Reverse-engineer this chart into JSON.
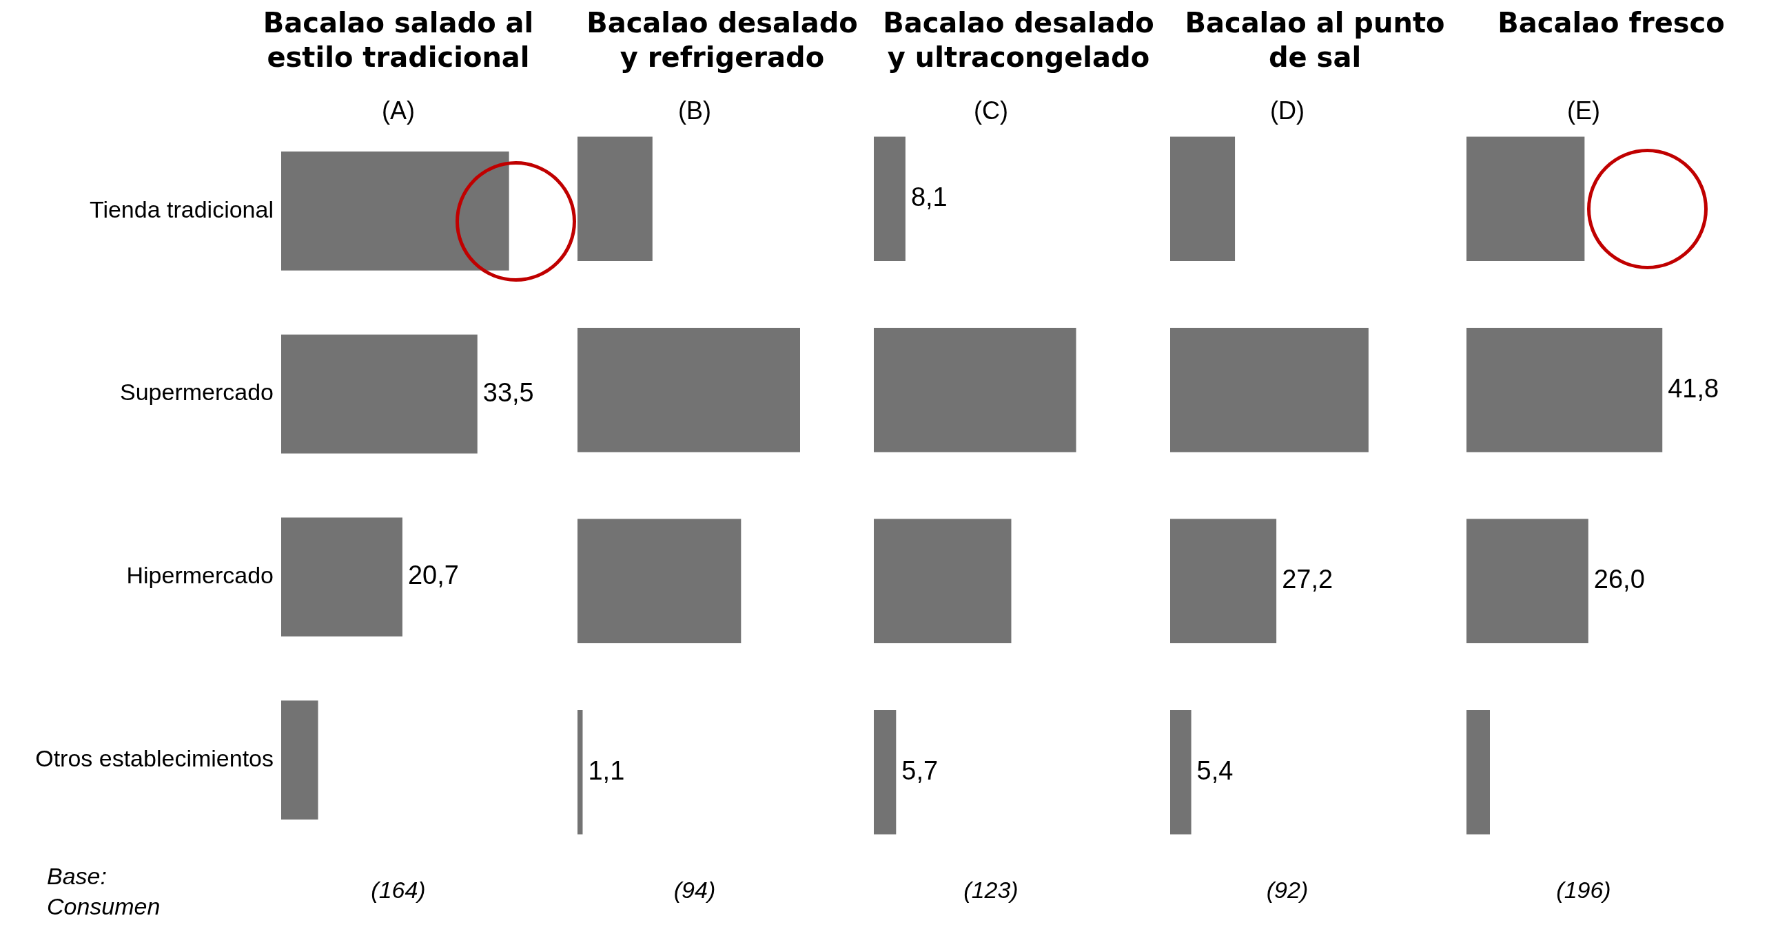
{
  "chart_data": [
    {
      "type": "bar",
      "orientation": "horizontal",
      "title": "Bacalao salado al estilo tradicional",
      "subtitle": "(A)",
      "categories": [
        "Tienda tradicional",
        "Supermercado",
        "Hipermercado",
        "Otros establecimientos"
      ],
      "values": [
        38.9,
        33.5,
        20.7,
        6.3
      ],
      "value_labels": [
        null,
        "33,5",
        "20,7",
        null
      ],
      "color": "#737373",
      "tick_labels": "y",
      "annotations": [
        "Base: Consumen",
        "(164)"
      ]
    },
    {
      "type": "bar",
      "orientation": "horizontal",
      "title": "Bacalao desalado y refrigerado",
      "subtitle": "(B)",
      "categories": [
        null,
        null,
        null,
        null
      ],
      "values": [
        16.0,
        47.5,
        34.9,
        1.1
      ],
      "value_labels": [
        null,
        null,
        null,
        "1,1"
      ],
      "color": "#737373",
      "tick_labels": false,
      "annotations": [
        "(94)"
      ]
    },
    {
      "type": "bar",
      "orientation": "horizontal",
      "title": "Bacalao desalado y ultracongelado",
      "subtitle": "(C)",
      "categories": [
        null,
        null,
        null,
        null
      ],
      "values": [
        8.1,
        51.8,
        35.2,
        5.7
      ],
      "value_labels": [
        "8,1",
        null,
        null,
        "5,7"
      ],
      "color": "#737373",
      "tick_labels": false,
      "annotations": [
        "(123)"
      ]
    },
    {
      "type": "bar",
      "orientation": "horizontal",
      "title": "Bacalao al punto de sal",
      "subtitle": "(D)",
      "categories": [
        null,
        null,
        null,
        null
      ],
      "values": [
        16.6,
        50.8,
        27.2,
        5.4
      ],
      "value_labels": [
        null,
        null,
        "27,2",
        "5,4"
      ],
      "color": "#737373",
      "tick_labels": false,
      "annotations": [
        "(92)"
      ]
    },
    {
      "type": "bar",
      "orientation": "horizontal",
      "title": "Bacalao fresco",
      "subtitle": "(E)",
      "categories": [
        null,
        null,
        null,
        null
      ],
      "values": [
        25.2,
        41.8,
        26.0,
        5.0
      ],
      "value_labels": [
        null,
        "41,8",
        "26,0",
        null
      ],
      "color": "#737373",
      "tick_labels": false,
      "annotations": [
        "(196)"
      ]
    }
  ]
}
